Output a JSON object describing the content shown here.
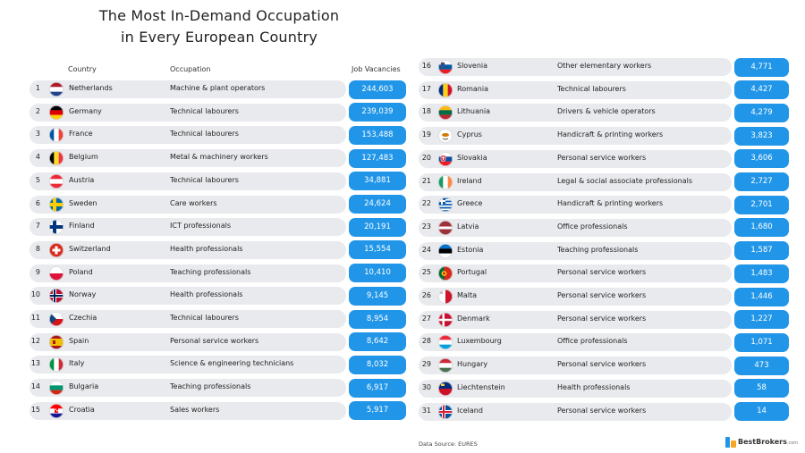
{
  "title_line1": "The Most In-Demand Occupation",
  "title_line2": "in Every European Country",
  "headers": {
    "country": "Country",
    "occupation": "Occupation",
    "vacancies": "Job Vacancies"
  },
  "source": "Data Source: EURES",
  "logo": {
    "name": "BestBrokers",
    "suffix": ".com"
  },
  "colors": {
    "pill": "#2196e8",
    "row_bg": "#e9eaed"
  },
  "chart_data": {
    "type": "table",
    "columns": [
      "Country",
      "Occupation",
      "Job Vacancies"
    ],
    "rows": [
      {
        "rank": 1,
        "country": "Netherlands",
        "occupation": "Machine & plant operators",
        "vacancies": "244,603",
        "flag": "netherlands-flag"
      },
      {
        "rank": 2,
        "country": "Germany",
        "occupation": "Technical labourers",
        "vacancies": "239,039",
        "flag": "germany-flag"
      },
      {
        "rank": 3,
        "country": "France",
        "occupation": "Technical labourers",
        "vacancies": "153,488",
        "flag": "france-flag"
      },
      {
        "rank": 4,
        "country": "Belgium",
        "occupation": "Metal & machinery workers",
        "vacancies": "127,483",
        "flag": "belgium-flag"
      },
      {
        "rank": 5,
        "country": "Austria",
        "occupation": "Technical labourers",
        "vacancies": "34,881",
        "flag": "austria-flag"
      },
      {
        "rank": 6,
        "country": "Sweden",
        "occupation": "Care workers",
        "vacancies": "24,624",
        "flag": "sweden-flag"
      },
      {
        "rank": 7,
        "country": "Finland",
        "occupation": "ICT professionals",
        "vacancies": "20,191",
        "flag": "finland-flag"
      },
      {
        "rank": 8,
        "country": "Switzerland",
        "occupation": "Health professionals",
        "vacancies": "15,554",
        "flag": "switzerland-flag"
      },
      {
        "rank": 9,
        "country": "Poland",
        "occupation": "Teaching professionals",
        "vacancies": "10,410",
        "flag": "poland-flag"
      },
      {
        "rank": 10,
        "country": "Norway",
        "occupation": "Health professionals",
        "vacancies": "9,145",
        "flag": "norway-flag"
      },
      {
        "rank": 11,
        "country": "Czechia",
        "occupation": "Technical labourers",
        "vacancies": "8,954",
        "flag": "czechia-flag"
      },
      {
        "rank": 12,
        "country": "Spain",
        "occupation": "Personal service workers",
        "vacancies": "8,642",
        "flag": "spain-flag"
      },
      {
        "rank": 13,
        "country": "Italy",
        "occupation": "Science & engineering technicians",
        "vacancies": "8,032",
        "flag": "italy-flag"
      },
      {
        "rank": 14,
        "country": "Bulgaria",
        "occupation": "Teaching professionals",
        "vacancies": "6,917",
        "flag": "bulgaria-flag"
      },
      {
        "rank": 15,
        "country": "Croatia",
        "occupation": "Sales workers",
        "vacancies": "5,917",
        "flag": "croatia-flag"
      },
      {
        "rank": 16,
        "country": "Slovenia",
        "occupation": "Other elementary workers",
        "vacancies": "4,771",
        "flag": "slovenia-flag"
      },
      {
        "rank": 17,
        "country": "Romania",
        "occupation": "Technical labourers",
        "vacancies": "4,427",
        "flag": "romania-flag"
      },
      {
        "rank": 18,
        "country": "Lithuania",
        "occupation": "Drivers & vehicle operators",
        "vacancies": "4,279",
        "flag": "lithuania-flag"
      },
      {
        "rank": 19,
        "country": "Cyprus",
        "occupation": "Handicraft & printing workers",
        "vacancies": "3,823",
        "flag": "cyprus-flag"
      },
      {
        "rank": 20,
        "country": "Slovakia",
        "occupation": "Personal service workers",
        "vacancies": "3,606",
        "flag": "slovakia-flag"
      },
      {
        "rank": 21,
        "country": "Ireland",
        "occupation": "Legal & social associate professionals",
        "vacancies": "2,727",
        "flag": "ireland-flag"
      },
      {
        "rank": 22,
        "country": "Greece",
        "occupation": "Handicraft & printing workers",
        "vacancies": "2,701",
        "flag": "greece-flag"
      },
      {
        "rank": 23,
        "country": "Latvia",
        "occupation": "Office professionals",
        "vacancies": "1,680",
        "flag": "latvia-flag"
      },
      {
        "rank": 24,
        "country": "Estonia",
        "occupation": "Teaching professionals",
        "vacancies": "1,587",
        "flag": "estonia-flag"
      },
      {
        "rank": 25,
        "country": "Portugal",
        "occupation": "Personal service workers",
        "vacancies": "1,483",
        "flag": "portugal-flag"
      },
      {
        "rank": 26,
        "country": "Malta",
        "occupation": "Personal service workers",
        "vacancies": "1,446",
        "flag": "malta-flag"
      },
      {
        "rank": 27,
        "country": "Denmark",
        "occupation": "Personal service workers",
        "vacancies": "1,227",
        "flag": "denmark-flag"
      },
      {
        "rank": 28,
        "country": "Luxembourg",
        "occupation": "Office professionals",
        "vacancies": "1,071",
        "flag": "luxembourg-flag"
      },
      {
        "rank": 29,
        "country": "Hungary",
        "occupation": "Personal service workers",
        "vacancies": "473",
        "flag": "hungary-flag"
      },
      {
        "rank": 30,
        "country": "Liechtenstein",
        "occupation": "Health professionals",
        "vacancies": "58",
        "flag": "liechtenstein-flag"
      },
      {
        "rank": 31,
        "country": "Iceland",
        "occupation": "Personal service workers",
        "vacancies": "14",
        "flag": "iceland-flag"
      }
    ]
  }
}
